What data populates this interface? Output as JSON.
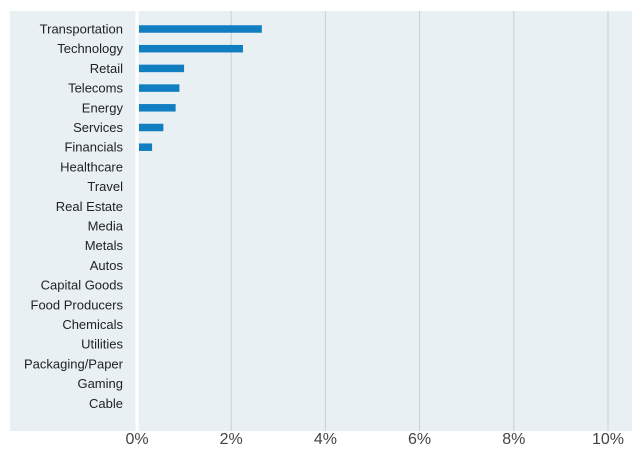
{
  "chart_data": {
    "type": "bar",
    "orientation": "horizontal",
    "categories": [
      "Transportation",
      "Technology",
      "Retail",
      "Telecoms",
      "Energy",
      "Services",
      "Financials",
      "Healthcare",
      "Travel",
      "Real Estate",
      "Media",
      "Metals",
      "Autos",
      "Capital Goods",
      "Food Producers",
      "Chemicals",
      "Utilities",
      "Packaging/Paper",
      "Gaming",
      "Cable"
    ],
    "values": [
      2.65,
      2.25,
      1.0,
      0.9,
      0.82,
      0.56,
      0.32,
      0,
      0,
      0,
      0,
      0,
      0,
      0,
      0,
      0,
      0,
      0,
      0,
      0
    ],
    "xlim": [
      0,
      10
    ],
    "xticks": [
      "0%",
      "2%",
      "4%",
      "6%",
      "8%",
      "10%"
    ],
    "grid": true,
    "colors": {
      "plot_background": "#e8f0f4",
      "bar": "#127ec2",
      "gridline": "#c9cfd3"
    }
  }
}
